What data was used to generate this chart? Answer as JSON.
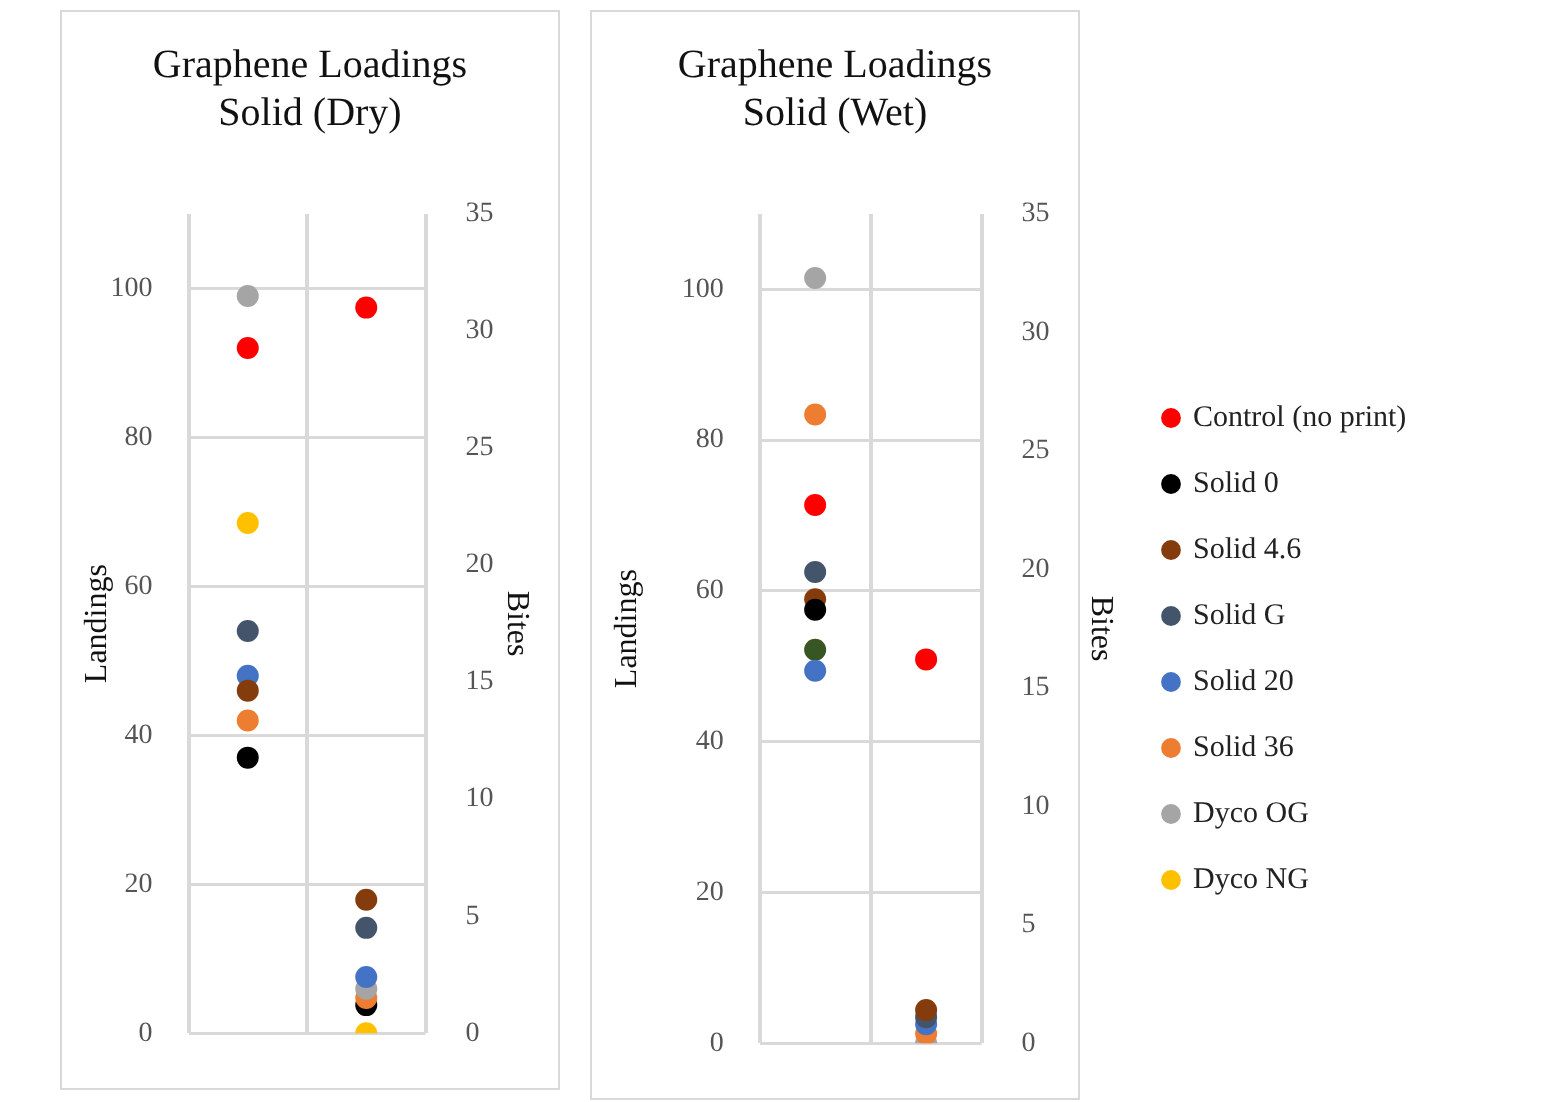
{
  "chart_data": [
    {
      "type": "scatter",
      "title": "Graphene Loadings Solid (Dry)",
      "ylabel": "Landings",
      "y2label": "Bites",
      "categories": [
        null,
        null
      ],
      "ylim": [
        0,
        110
      ],
      "yticks": [
        0,
        20,
        40,
        60,
        80,
        100
      ],
      "y2lim": [
        0,
        35
      ],
      "y2ticks": [
        0,
        5,
        10,
        15,
        20,
        25,
        30,
        35
      ],
      "grid": true,
      "marker": "circle",
      "series": [
        {
          "color": "#ff0000",
          "values": [
            92,
            null
          ]
        },
        {
          "color": "#000000",
          "values": [
            37,
            null
          ]
        },
        {
          "color": "#843c0c",
          "values": [
            46,
            null
          ]
        },
        {
          "color": "#44546a",
          "values": [
            54,
            null
          ]
        },
        {
          "color": "#4472c4",
          "values": [
            48,
            null
          ]
        },
        {
          "color": "#ed7d31",
          "values": [
            42,
            null
          ]
        },
        {
          "color": "#a5a5a5",
          "values": [
            99,
            null
          ]
        },
        {
          "color": "#ffc000",
          "values": [
            68.5,
            null
          ]
        },
        {
          "color": "#ff0000",
          "axis": "y2",
          "values": [
            null,
            31
          ]
        },
        {
          "color": "#843c0c",
          "axis": "y2",
          "values": [
            null,
            5.7
          ]
        },
        {
          "color": "#44546a",
          "axis": "y2",
          "values": [
            null,
            4.5
          ]
        },
        {
          "color": "#4472c4",
          "axis": "y2",
          "values": [
            null,
            2.4
          ]
        },
        {
          "color": "#a5a5a5",
          "axis": "y2",
          "values": [
            null,
            1.9
          ]
        },
        {
          "color": "#ed7d31",
          "axis": "y2",
          "values": [
            null,
            1.5
          ]
        },
        {
          "color": "#000000",
          "axis": "y2",
          "values": [
            null,
            1.2
          ]
        },
        {
          "color": "#ffc000",
          "axis": "y2",
          "values": [
            null,
            0
          ]
        }
      ]
    },
    {
      "type": "scatter",
      "title": "Graphene Loadings Solid (Wet)",
      "ylabel": "Landings",
      "y2label": "Bites",
      "categories": [
        null,
        null
      ],
      "ylim": [
        0,
        110
      ],
      "yticks": [
        0,
        20,
        40,
        60,
        80,
        100
      ],
      "y2lim": [
        0,
        35
      ],
      "y2ticks": [
        0,
        5,
        10,
        15,
        20,
        25,
        30,
        35
      ],
      "grid": true,
      "marker": "circle",
      "legend": "right",
      "series": [
        {
          "name": "Control (no print)",
          "color": "#ff0000",
          "values": [
            71.4,
            null
          ]
        },
        {
          "name": "Solid 0",
          "color": "#000000",
          "values": [
            57.5,
            null
          ]
        },
        {
          "name": "Solid 4.6",
          "color": "#843c0c",
          "values": [
            58.9,
            null
          ]
        },
        {
          "name": "Solid G",
          "color": "#44546a",
          "values": [
            62.5,
            null
          ]
        },
        {
          "name": "Solid 20",
          "color": "#4472c4",
          "values": [
            49.4,
            null
          ]
        },
        {
          "name": "Solid 36",
          "color": "#ed7d31",
          "values": [
            83.4,
            null
          ]
        },
        {
          "name": "Dyco OG",
          "color": "#a5a5a5",
          "values": [
            101.5,
            null
          ]
        },
        {
          "name": "Dyco NG",
          "color": "#ffc000",
          "values": [
            null,
            null
          ]
        },
        {
          "color": "#375623",
          "values": [
            52.2,
            null
          ]
        },
        {
          "color": "#ff0000",
          "axis": "y2",
          "values": [
            null,
            16.2
          ]
        },
        {
          "color": "#843c0c",
          "axis": "y2",
          "values": [
            null,
            1.4
          ]
        },
        {
          "color": "#44546a",
          "axis": "y2",
          "values": [
            null,
            1.1
          ]
        },
        {
          "color": "#4472c4",
          "axis": "y2",
          "values": [
            null,
            0.8
          ]
        },
        {
          "color": "#ed7d31",
          "axis": "y2",
          "values": [
            null,
            0.4
          ]
        },
        {
          "color": "#a5a5a5",
          "axis": "y2",
          "values": [
            null,
            0
          ]
        }
      ]
    }
  ]
}
